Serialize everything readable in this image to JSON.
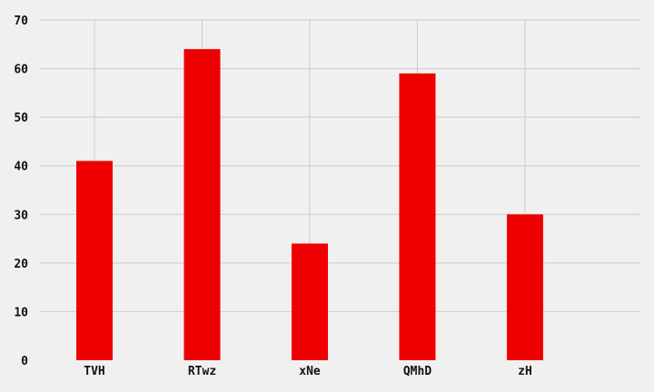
{
  "chart_data": {
    "type": "bar",
    "categories": [
      "TVH",
      "RTwz",
      "xNe",
      "QMhD",
      "zH"
    ],
    "values": [
      41,
      64,
      24,
      59,
      30
    ],
    "title": "",
    "xlabel": "",
    "ylabel": "",
    "ylim": [
      0,
      70
    ],
    "yticks": [
      0,
      10,
      20,
      30,
      40,
      50,
      60,
      70
    ],
    "grid": true,
    "legend": "none",
    "colors": {
      "bar": "#ee0000",
      "background": "#f0f0f0",
      "grid": "#cbcbcb",
      "text": "#111111"
    }
  }
}
